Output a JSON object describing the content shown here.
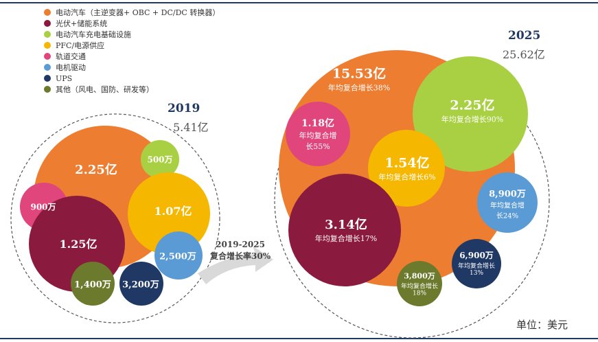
{
  "legend": [
    {
      "label": "电动汽车（主逆变器+ OBC + DC/DC 转换器）",
      "color": "#ED7D31"
    },
    {
      "label": "光伏+储能系统",
      "color": "#8B1A3F"
    },
    {
      "label": "电动汽车充电基础设施",
      "color": "#A9D042"
    },
    {
      "label": "PFC/电源供应",
      "color": "#F5B700"
    },
    {
      "label": "轨道交通",
      "color": "#E0457B"
    },
    {
      "label": "电机驱动",
      "color": "#5B9BD5"
    },
    {
      "label": "UPS",
      "color": "#1F3864"
    },
    {
      "label": "其他（风电、国防、研发等）",
      "color": "#6B7A2C"
    }
  ],
  "y2019": {
    "year": "2019",
    "total": "5.41亿",
    "bubbles": [
      {
        "key": "ev",
        "value": "2.25亿"
      },
      {
        "key": "charging",
        "value": "500万"
      },
      {
        "key": "rail",
        "value": "900万"
      },
      {
        "key": "pfc",
        "value": "1.07亿"
      },
      {
        "key": "pv",
        "value": "1.25亿"
      },
      {
        "key": "motor",
        "value": "2,500万"
      },
      {
        "key": "other",
        "value": "1,400万"
      },
      {
        "key": "ups",
        "value": "3,200万"
      }
    ]
  },
  "growth_arrow": {
    "line1": "2019-2025",
    "line2": "复合增长率30%"
  },
  "y2025": {
    "year": "2025",
    "total": "25.62亿",
    "bubbles": [
      {
        "key": "ev",
        "value": "15.53亿",
        "sub": "年均复合增长38%"
      },
      {
        "key": "charging",
        "value": "2.25亿",
        "sub": "年均复合增长90%"
      },
      {
        "key": "rail",
        "value": "1.18亿",
        "sub": "年均复合增",
        "sub2": "长55%"
      },
      {
        "key": "pfc",
        "value": "1.54亿",
        "sub": "年均复合增长6%"
      },
      {
        "key": "motor",
        "value": "8,900万",
        "sub": "年均复合增",
        "sub2": "长24%"
      },
      {
        "key": "pv",
        "value": "3.14亿",
        "sub": "年均复合增长17%"
      },
      {
        "key": "ups",
        "value": "6,900万",
        "sub": "年均复合增长",
        "sub2": "13%"
      },
      {
        "key": "other",
        "value": "3,800万",
        "sub": "年均复合增长",
        "sub2": "18%"
      }
    ]
  },
  "unit_label": "单位：美元"
}
